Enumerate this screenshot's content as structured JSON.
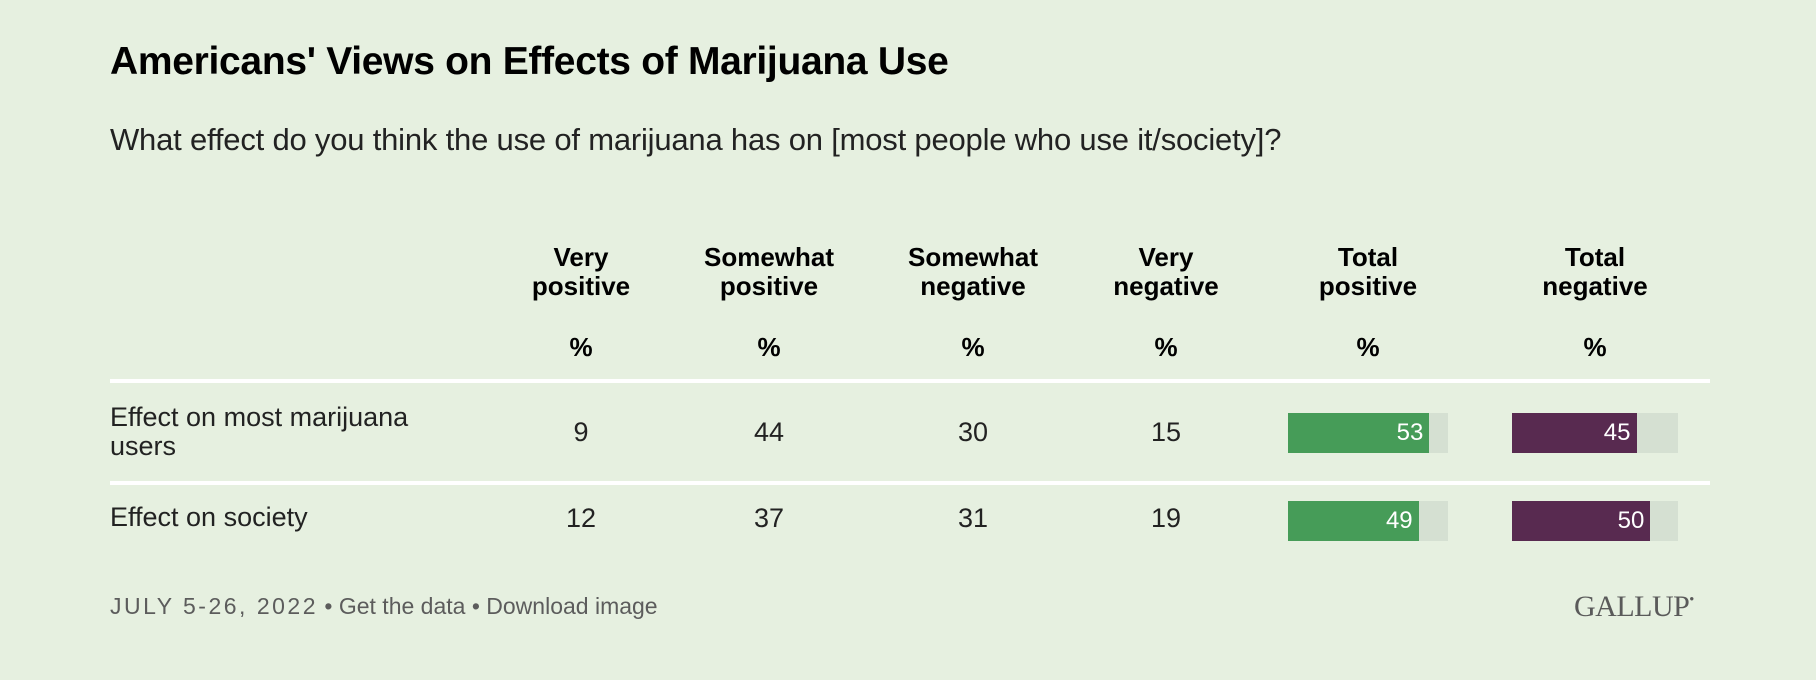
{
  "title": "Americans' Views on Effects of Marijuana Use",
  "subtitle": "What effect do you think the use of marijuana has on [most people who use it/society]?",
  "columns": [
    {
      "line1": "Very",
      "line2": "positive",
      "unit": "%"
    },
    {
      "line1": "Somewhat",
      "line2": "positive",
      "unit": "%"
    },
    {
      "line1": "Somewhat",
      "line2": "negative",
      "unit": "%"
    },
    {
      "line1": "Very",
      "line2": "negative",
      "unit": "%"
    },
    {
      "line1": "Total",
      "line2": "positive",
      "unit": "%"
    },
    {
      "line1": "Total",
      "line2": "negative",
      "unit": "%"
    }
  ],
  "rows": [
    {
      "label": "Effect on most marijuana users",
      "values": [
        "9",
        "44",
        "30",
        "15"
      ],
      "total_positive": 53,
      "total_negative": 45
    },
    {
      "label": "Effect on society",
      "values": [
        "12",
        "37",
        "31",
        "19"
      ],
      "total_positive": 49,
      "total_negative": 50
    }
  ],
  "colors": {
    "background": "#e6f0e0",
    "positive_bar": "#469c58",
    "negative_bar": "#582a50",
    "bar_track": "#d5e0d2",
    "divider": "#ffffff"
  },
  "bar_scale_max": 60,
  "footer": {
    "date": "JULY 5-26, 2022",
    "separator": "•",
    "get_data": "Get the data",
    "download": "Download image"
  },
  "logo": "GALLUP",
  "chart_data": {
    "type": "table",
    "title": "Americans' Views on Effects of Marijuana Use",
    "subtitle": "What effect do you think the use of marijuana has on [most people who use it/society]?",
    "columns": [
      "Very positive %",
      "Somewhat positive %",
      "Somewhat negative %",
      "Very negative %",
      "Total positive %",
      "Total negative %"
    ],
    "categories": [
      "Effect on most marijuana users",
      "Effect on society"
    ],
    "series": [
      {
        "name": "Very positive",
        "values": [
          9,
          12
        ]
      },
      {
        "name": "Somewhat positive",
        "values": [
          44,
          37
        ]
      },
      {
        "name": "Somewhat negative",
        "values": [
          30,
          31
        ]
      },
      {
        "name": "Very negative",
        "values": [
          15,
          19
        ]
      },
      {
        "name": "Total positive",
        "values": [
          53,
          49
        ]
      },
      {
        "name": "Total negative",
        "values": [
          45,
          50
        ]
      }
    ],
    "bar_columns": [
      "Total positive",
      "Total negative"
    ],
    "source_date": "JULY 5-26, 2022"
  }
}
